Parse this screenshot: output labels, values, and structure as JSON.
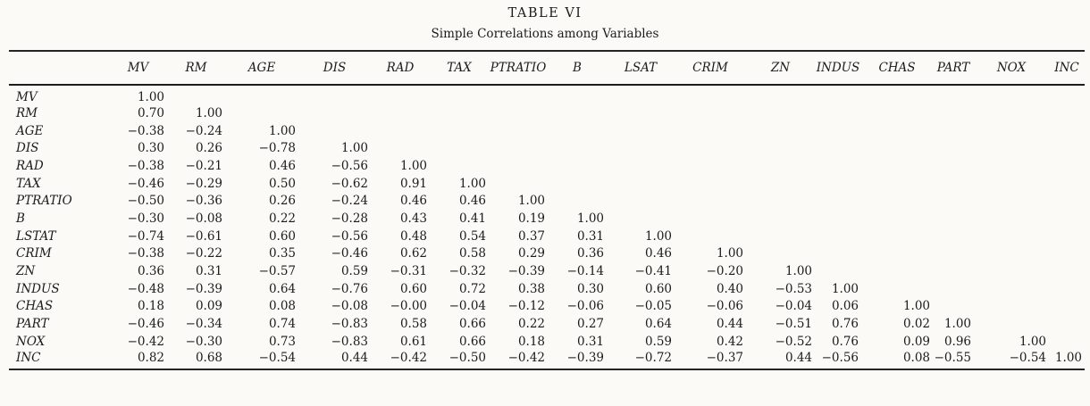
{
  "page": {
    "kind": "scanned-paper-table"
  },
  "colors": {
    "paper_bg": "#fbfaf7",
    "ink": "#1b1b1b"
  },
  "chart_data": {
    "type": "table",
    "title": "TABLE VI",
    "subtitle": "Simple Correlations among Variables",
    "columns": [
      "MV",
      "RM",
      "AGE",
      "DIS",
      "RAD",
      "TAX",
      "PTRATIO",
      "B",
      "LSAT",
      "CRIM",
      "ZN",
      "INDUS",
      "CHAS",
      "PART",
      "NOX",
      "INC"
    ],
    "rows": [
      {
        "label": "MV",
        "values": [
          "1.00"
        ]
      },
      {
        "label": "RM",
        "values": [
          "0.70",
          "1.00"
        ]
      },
      {
        "label": "AGE",
        "values": [
          "−0.38",
          "−0.24",
          "1.00"
        ]
      },
      {
        "label": "DIS",
        "values": [
          "0.30",
          "0.26",
          "−0.78",
          "1.00"
        ]
      },
      {
        "label": "RAD",
        "values": [
          "−0.38",
          "−0.21",
          "0.46",
          "−0.56",
          "1.00"
        ]
      },
      {
        "label": "TAX",
        "values": [
          "−0.46",
          "−0.29",
          "0.50",
          "−0.62",
          "0.91",
          "1.00"
        ]
      },
      {
        "label": "PTRATIO",
        "values": [
          "−0.50",
          "−0.36",
          "0.26",
          "−0.24",
          "0.46",
          "0.46",
          "1.00"
        ]
      },
      {
        "label": "B",
        "values": [
          "−0.30",
          "−0.08",
          "0.22",
          "−0.28",
          "0.43",
          "0.41",
          "0.19",
          "1.00"
        ]
      },
      {
        "label": "LSTAT",
        "values": [
          "−0.74",
          "−0.61",
          "0.60",
          "−0.56",
          "0.48",
          "0.54",
          "0.37",
          "0.31",
          "1.00"
        ]
      },
      {
        "label": "CRIM",
        "values": [
          "−0.38",
          "−0.22",
          "0.35",
          "−0.46",
          "0.62",
          "0.58",
          "0.29",
          "0.36",
          "0.46",
          "1.00"
        ]
      },
      {
        "label": "ZN",
        "values": [
          "0.36",
          "0.31",
          "−0.57",
          "0.59",
          "−0.31",
          "−0.32",
          "−0.39",
          "−0.14",
          "−0.41",
          "−0.20",
          "1.00"
        ]
      },
      {
        "label": "INDUS",
        "values": [
          "−0.48",
          "−0.39",
          "0.64",
          "−0.76",
          "0.60",
          "0.72",
          "0.38",
          "0.30",
          "0.60",
          "0.40",
          "−0.53",
          "1.00"
        ]
      },
      {
        "label": "CHAS",
        "values": [
          "0.18",
          "0.09",
          "0.08",
          "−0.08",
          "−0.00",
          "−0.04",
          "−0.12",
          "−0.06",
          "−0.05",
          "−0.06",
          "−0.04",
          "0.06",
          "1.00"
        ]
      },
      {
        "label": "PART",
        "values": [
          "−0.46",
          "−0.34",
          "0.74",
          "−0.83",
          "0.58",
          "0.66",
          "0.22",
          "0.27",
          "0.64",
          "0.44",
          "−0.51",
          "0.76",
          "0.02",
          "1.00"
        ]
      },
      {
        "label": "NOX",
        "values": [
          "−0.42",
          "−0.30",
          "0.73",
          "−0.83",
          "0.61",
          "0.66",
          "0.18",
          "0.31",
          "0.59",
          "0.42",
          "−0.52",
          "0.76",
          "0.09",
          "0.96",
          "1.00"
        ]
      },
      {
        "label": "INC",
        "values": [
          "0.82",
          "0.68",
          "−0.54",
          "0.44",
          "−0.42",
          "−0.50",
          "−0.42",
          "−0.39",
          "−0.72",
          "−0.37",
          "0.44",
          "−0.56",
          "0.08",
          "−0.55",
          "−0.54",
          "1.00"
        ]
      }
    ]
  }
}
